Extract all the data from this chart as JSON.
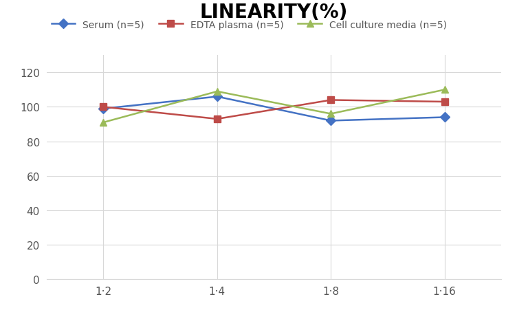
{
  "title": "LINEARITY(%)",
  "title_fontsize": 20,
  "title_fontweight": "bold",
  "x_labels": [
    "1·2",
    "1·4",
    "1·8",
    "1·16"
  ],
  "x_positions": [
    0,
    1,
    2,
    3
  ],
  "serum": [
    99,
    106,
    92,
    94
  ],
  "edta": [
    100,
    93,
    104,
    103
  ],
  "cell": [
    91,
    109,
    96,
    110
  ],
  "serum_color": "#4472c4",
  "edta_color": "#be4b48",
  "cell_color": "#9bbb59",
  "serum_label": "Serum (n=5)",
  "edta_label": "EDTA plasma (n=5)",
  "cell_label": "Cell culture media (n=5)",
  "ylim": [
    0,
    130
  ],
  "yticks": [
    0,
    20,
    40,
    60,
    80,
    100,
    120
  ],
  "marker_size": 7,
  "linewidth": 1.8,
  "background_color": "#ffffff",
  "grid_color": "#d8d8d8",
  "legend_fontsize": 10,
  "tick_fontsize": 11
}
